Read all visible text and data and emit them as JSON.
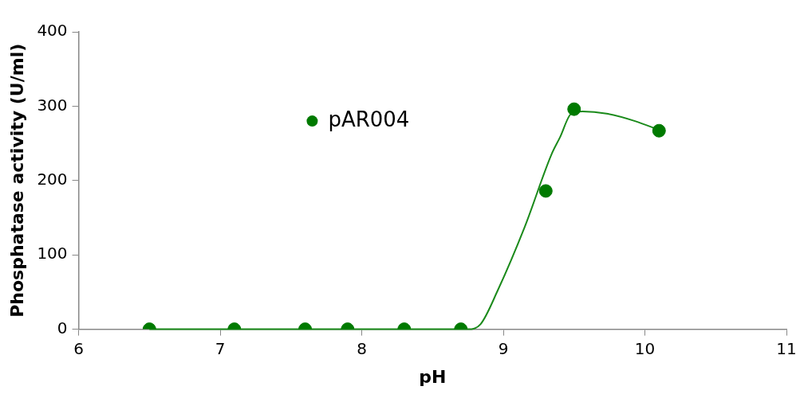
{
  "chart_data": {
    "type": "scatter",
    "xlabel": "pH",
    "ylabel": "Phosphatase activity (U/ml)",
    "xlim": [
      6,
      11
    ],
    "xticks": [
      6,
      7,
      8,
      9,
      10,
      11
    ],
    "ylim": [
      0,
      400
    ],
    "yticks": [
      0,
      100,
      200,
      300,
      400
    ],
    "grid": false,
    "legend": "top",
    "marker": "circle",
    "series": [
      {
        "name": "pAR004",
        "color": "#007a00",
        "x": [
          6.5,
          7.1,
          7.6,
          7.9,
          8.3,
          8.7,
          9.3,
          9.5,
          10.1
        ],
        "values": [
          0,
          0,
          0,
          0,
          0,
          0,
          186,
          296,
          267
        ]
      },
      {
        "type": "line",
        "color": "#1a8a1a",
        "marker": "none",
        "x": [
          6.5,
          7.5,
          8.5,
          8.75,
          8.84,
          8.96,
          9.15,
          9.34,
          9.4,
          9.48,
          9.56,
          9.73,
          9.93,
          10.1
        ],
        "values": [
          0,
          0,
          0,
          0,
          7,
          52,
          137,
          235,
          258,
          290,
          293,
          290,
          280,
          268
        ]
      }
    ]
  }
}
